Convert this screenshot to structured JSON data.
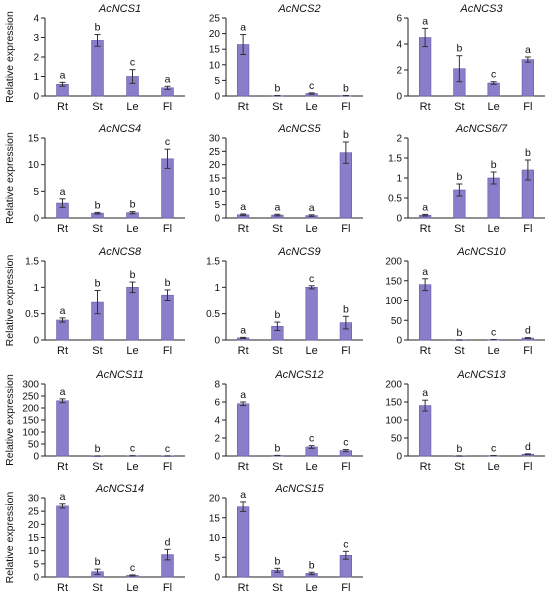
{
  "chart_data": [
    {
      "type": "bar",
      "title": "AcNCS1",
      "ylabel": "Relative expression",
      "categories": [
        "Rt",
        "St",
        "Le",
        "Fl"
      ],
      "ylim": [
        0,
        4
      ],
      "yticks": [
        0,
        1,
        2,
        3,
        4
      ],
      "values": [
        0.6,
        2.85,
        1.0,
        0.42
      ],
      "errors": [
        0.1,
        0.3,
        0.35,
        0.08
      ],
      "letters": [
        "a",
        "b",
        "c",
        "a"
      ]
    },
    {
      "type": "bar",
      "title": "AcNCS2",
      "ylabel": "",
      "categories": [
        "Rt",
        "St",
        "Le",
        "Fl"
      ],
      "ylim": [
        0,
        25
      ],
      "yticks": [
        0,
        5,
        10,
        15,
        20,
        25
      ],
      "values": [
        16.5,
        0.1,
        0.8,
        0.1
      ],
      "errors": [
        3.2,
        0.05,
        0.2,
        0.05
      ],
      "letters": [
        "a",
        "b",
        "c",
        "b"
      ]
    },
    {
      "type": "bar",
      "title": "AcNCS3",
      "ylabel": "",
      "categories": [
        "Rt",
        "St",
        "Le",
        "Fl"
      ],
      "ylim": [
        0,
        6
      ],
      "yticks": [
        0,
        2,
        4,
        6
      ],
      "values": [
        4.5,
        2.1,
        1.0,
        2.8
      ],
      "errors": [
        0.7,
        1.0,
        0.1,
        0.2
      ],
      "letters": [
        "a",
        "b",
        "c",
        "a"
      ]
    },
    {
      "type": "bar",
      "title": "AcNCS4",
      "ylabel": "Relative expression",
      "categories": [
        "Rt",
        "St",
        "Le",
        "Fl"
      ],
      "ylim": [
        0,
        15
      ],
      "yticks": [
        0,
        5,
        10,
        15
      ],
      "values": [
        2.8,
        0.9,
        1.0,
        11.1
      ],
      "errors": [
        0.8,
        0.15,
        0.2,
        1.8
      ],
      "letters": [
        "a",
        "b",
        "b",
        "c"
      ]
    },
    {
      "type": "bar",
      "title": "AcNCS5",
      "ylabel": "",
      "categories": [
        "Rt",
        "St",
        "Le",
        "Fl"
      ],
      "ylim": [
        0,
        30
      ],
      "yticks": [
        0,
        5,
        10,
        15,
        20,
        25,
        30
      ],
      "values": [
        1.2,
        1.1,
        0.9,
        24.5
      ],
      "errors": [
        0.3,
        0.3,
        0.3,
        4.0
      ],
      "letters": [
        "a",
        "a",
        "a",
        "b"
      ]
    },
    {
      "type": "bar",
      "title": "AcNCS6/7",
      "ylabel": "",
      "categories": [
        "Rt",
        "St",
        "Le",
        "Fl"
      ],
      "ylim": [
        0,
        2
      ],
      "yticks": [
        0,
        0.5,
        1,
        1.5,
        2
      ],
      "values": [
        0.07,
        0.7,
        1.0,
        1.2
      ],
      "errors": [
        0.02,
        0.15,
        0.15,
        0.25
      ],
      "letters": [
        "a",
        "b",
        "b",
        "b"
      ]
    },
    {
      "type": "bar",
      "title": "AcNCS8",
      "ylabel": "Relative expression",
      "categories": [
        "Rt",
        "St",
        "Le",
        "Fl"
      ],
      "ylim": [
        0,
        1.5
      ],
      "yticks": [
        0,
        0.5,
        1,
        1.5
      ],
      "values": [
        0.38,
        0.72,
        1.0,
        0.85
      ],
      "errors": [
        0.04,
        0.22,
        0.1,
        0.1
      ],
      "letters": [
        "a",
        "b",
        "b",
        "b"
      ]
    },
    {
      "type": "bar",
      "title": "AcNCS9",
      "ylabel": "",
      "categories": [
        "Rt",
        "St",
        "Le",
        "Fl"
      ],
      "ylim": [
        0,
        1.5
      ],
      "yticks": [
        0,
        0.5,
        1,
        1.5
      ],
      "values": [
        0.04,
        0.26,
        1.0,
        0.33
      ],
      "errors": [
        0.01,
        0.08,
        0.03,
        0.12
      ],
      "letters": [
        "a",
        "b",
        "c",
        "b"
      ]
    },
    {
      "type": "bar",
      "title": "AcNCS10",
      "ylabel": "",
      "categories": [
        "Rt",
        "St",
        "Le",
        "Fl"
      ],
      "ylim": [
        0,
        200
      ],
      "yticks": [
        0,
        50,
        100,
        150,
        200
      ],
      "values": [
        140,
        0.3,
        1.0,
        5.0
      ],
      "errors": [
        15,
        0.1,
        0.2,
        1.0
      ],
      "letters": [
        "a",
        "b",
        "c",
        "d"
      ]
    },
    {
      "type": "bar",
      "title": "AcNCS11",
      "ylabel": "Relative expression",
      "categories": [
        "Rt",
        "St",
        "Le",
        "Fl"
      ],
      "ylim": [
        0,
        300
      ],
      "yticks": [
        0,
        50,
        100,
        150,
        200,
        250,
        300
      ],
      "values": [
        230,
        0.3,
        1.0,
        0.5
      ],
      "errors": [
        8,
        0.1,
        0.2,
        0.1
      ],
      "letters": [
        "a",
        "b",
        "c",
        "c"
      ]
    },
    {
      "type": "bar",
      "title": "AcNCS12",
      "ylabel": "",
      "categories": [
        "Rt",
        "St",
        "Le",
        "Fl"
      ],
      "ylim": [
        0,
        8
      ],
      "yticks": [
        0,
        2,
        4,
        6,
        8
      ],
      "values": [
        5.8,
        0.05,
        1.0,
        0.6
      ],
      "errors": [
        0.2,
        0.02,
        0.15,
        0.12
      ],
      "letters": [
        "a",
        "b",
        "c",
        "c"
      ]
    },
    {
      "type": "bar",
      "title": "AcNCS13",
      "ylabel": "",
      "categories": [
        "Rt",
        "St",
        "Le",
        "Fl"
      ],
      "ylim": [
        0,
        200
      ],
      "yticks": [
        0,
        50,
        100,
        150,
        200
      ],
      "values": [
        140,
        0.3,
        1.0,
        5.0
      ],
      "errors": [
        15,
        0.1,
        0.2,
        1.0
      ],
      "letters": [
        "a",
        "b",
        "c",
        "d"
      ]
    },
    {
      "type": "bar",
      "title": "AcNCS14",
      "ylabel": "Relative expression",
      "categories": [
        "Rt",
        "St",
        "Le",
        "Fl"
      ],
      "ylim": [
        0,
        30
      ],
      "yticks": [
        0,
        5,
        10,
        15,
        20,
        25,
        30
      ],
      "values": [
        27,
        2.0,
        0.6,
        8.5
      ],
      "errors": [
        0.8,
        1.0,
        0.2,
        2.0
      ],
      "letters": [
        "a",
        "b",
        "c",
        "d"
      ]
    },
    {
      "type": "bar",
      "title": "AcNCS15",
      "ylabel": "",
      "categories": [
        "Rt",
        "St",
        "Le",
        "Fl"
      ],
      "ylim": [
        0,
        20
      ],
      "yticks": [
        0,
        5,
        10,
        15,
        20
      ],
      "values": [
        17.8,
        1.7,
        0.9,
        5.5
      ],
      "errors": [
        1.2,
        0.5,
        0.3,
        1.0
      ],
      "letters": [
        "a",
        "b",
        "b",
        "c"
      ]
    }
  ],
  "bar_color": "#8a7dc9",
  "bar_edge_color": "#6a5aad",
  "axis_color": "#222222"
}
